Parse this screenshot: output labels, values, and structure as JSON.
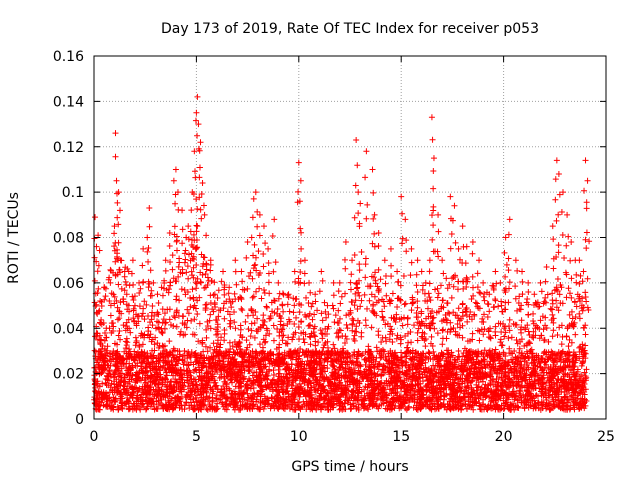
{
  "chart_data": {
    "type": "scatter",
    "title": "Day 173 of 2019, Rate Of TEC Index for receiver p053",
    "xlabel": "GPS time / hours",
    "ylabel": "ROTI / TECUs",
    "xlim": [
      0,
      25
    ],
    "ylim": [
      0,
      0.16
    ],
    "x_ticks": [
      0,
      5,
      10,
      15,
      20,
      25
    ],
    "x_tick_labels": [
      "0",
      "5",
      "10",
      "15",
      "20",
      "25"
    ],
    "y_ticks": [
      0,
      0.02,
      0.04,
      0.06,
      0.08,
      0.1,
      0.12,
      0.14,
      0.16
    ],
    "y_tick_labels": [
      "0",
      "0.02",
      "0.04",
      "0.06",
      "0.08",
      "0.1",
      "0.12",
      "0.14",
      "0.16"
    ],
    "grid": true,
    "marker": "plus",
    "color": "#ff0000",
    "series": [
      {
        "x": [
          0.05,
          0.12,
          0.2,
          0.3,
          0.35,
          0.5,
          0.6,
          0.8,
          1.0,
          1.05,
          1.1,
          1.2,
          1.3,
          1.5,
          1.6,
          1.7,
          1.9,
          2.0,
          2.2,
          2.4,
          2.6,
          2.7,
          2.9,
          3.1,
          3.3,
          3.5,
          3.7,
          3.9,
          4.0,
          4.1,
          4.3,
          4.5,
          4.6,
          4.8,
          4.9,
          5.0,
          5.05,
          5.1,
          5.2,
          5.3,
          5.4,
          5.5,
          5.7,
          5.9,
          6.1,
          6.3,
          6.6,
          6.9,
          7.2,
          7.5,
          7.7,
          7.8,
          7.9,
          8.1,
          8.3,
          8.5,
          8.8,
          9.0,
          9.2,
          9.5,
          9.8,
          10.0,
          10.1,
          10.3,
          10.5,
          10.8,
          11.1,
          11.4,
          11.7,
          12.0,
          12.3,
          12.6,
          12.8,
          12.9,
          13.0,
          13.3,
          13.6,
          13.7,
          13.9,
          14.2,
          14.5,
          14.8,
          15.0,
          15.2,
          15.5,
          15.8,
          16.0,
          16.2,
          16.4,
          16.5,
          16.6,
          16.8,
          17.0,
          17.2,
          17.4,
          17.6,
          17.8,
          18.0,
          18.2,
          18.5,
          18.8,
          19.0,
          19.3,
          19.6,
          19.9,
          20.1,
          20.3,
          20.6,
          20.9,
          21.2,
          21.5,
          21.8,
          22.1,
          22.4,
          22.6,
          22.7,
          22.9,
          23.1,
          23.3,
          23.5,
          23.7,
          23.9,
          24.0,
          24.1
        ],
        "y": [
          0.089,
          0.076,
          0.081,
          0.052,
          0.035,
          0.028,
          0.04,
          0.06,
          0.085,
          0.126,
          0.105,
          0.1,
          0.07,
          0.065,
          0.055,
          0.05,
          0.07,
          0.05,
          0.06,
          0.075,
          0.08,
          0.093,
          0.06,
          0.055,
          0.058,
          0.07,
          0.082,
          0.105,
          0.11,
          0.1,
          0.092,
          0.08,
          0.085,
          0.1,
          0.118,
          0.135,
          0.142,
          0.13,
          0.122,
          0.104,
          0.09,
          0.068,
          0.07,
          0.055,
          0.048,
          0.065,
          0.058,
          0.07,
          0.065,
          0.078,
          0.08,
          0.097,
          0.1,
          0.09,
          0.085,
          0.075,
          0.088,
          0.06,
          0.05,
          0.055,
          0.065,
          0.113,
          0.105,
          0.07,
          0.06,
          0.055,
          0.065,
          0.05,
          0.06,
          0.06,
          0.078,
          0.07,
          0.123,
          0.1,
          0.095,
          0.118,
          0.11,
          0.09,
          0.082,
          0.07,
          0.075,
          0.065,
          0.098,
          0.088,
          0.075,
          0.07,
          0.065,
          0.06,
          0.07,
          0.133,
          0.115,
          0.09,
          0.07,
          0.062,
          0.098,
          0.094,
          0.075,
          0.085,
          0.076,
          0.078,
          0.07,
          0.06,
          0.055,
          0.065,
          0.05,
          0.08,
          0.088,
          0.07,
          0.065,
          0.06,
          0.055,
          0.06,
          0.067,
          0.085,
          0.114,
          0.108,
          0.1,
          0.09,
          0.078,
          0.07,
          0.07,
          0.065,
          0.114,
          0.105
        ]
      }
    ],
    "density_profile": {
      "x": [
        0,
        1,
        2,
        3,
        4,
        5,
        6,
        7,
        8,
        9,
        10,
        11,
        12,
        13,
        14,
        15,
        16,
        17,
        18,
        19,
        20,
        21,
        22,
        23,
        24
      ],
      "y_typical": [
        0.03,
        0.055,
        0.045,
        0.04,
        0.05,
        0.06,
        0.045,
        0.04,
        0.045,
        0.04,
        0.04,
        0.038,
        0.038,
        0.045,
        0.045,
        0.045,
        0.04,
        0.045,
        0.048,
        0.04,
        0.045,
        0.04,
        0.038,
        0.045,
        0.04
      ]
    }
  }
}
